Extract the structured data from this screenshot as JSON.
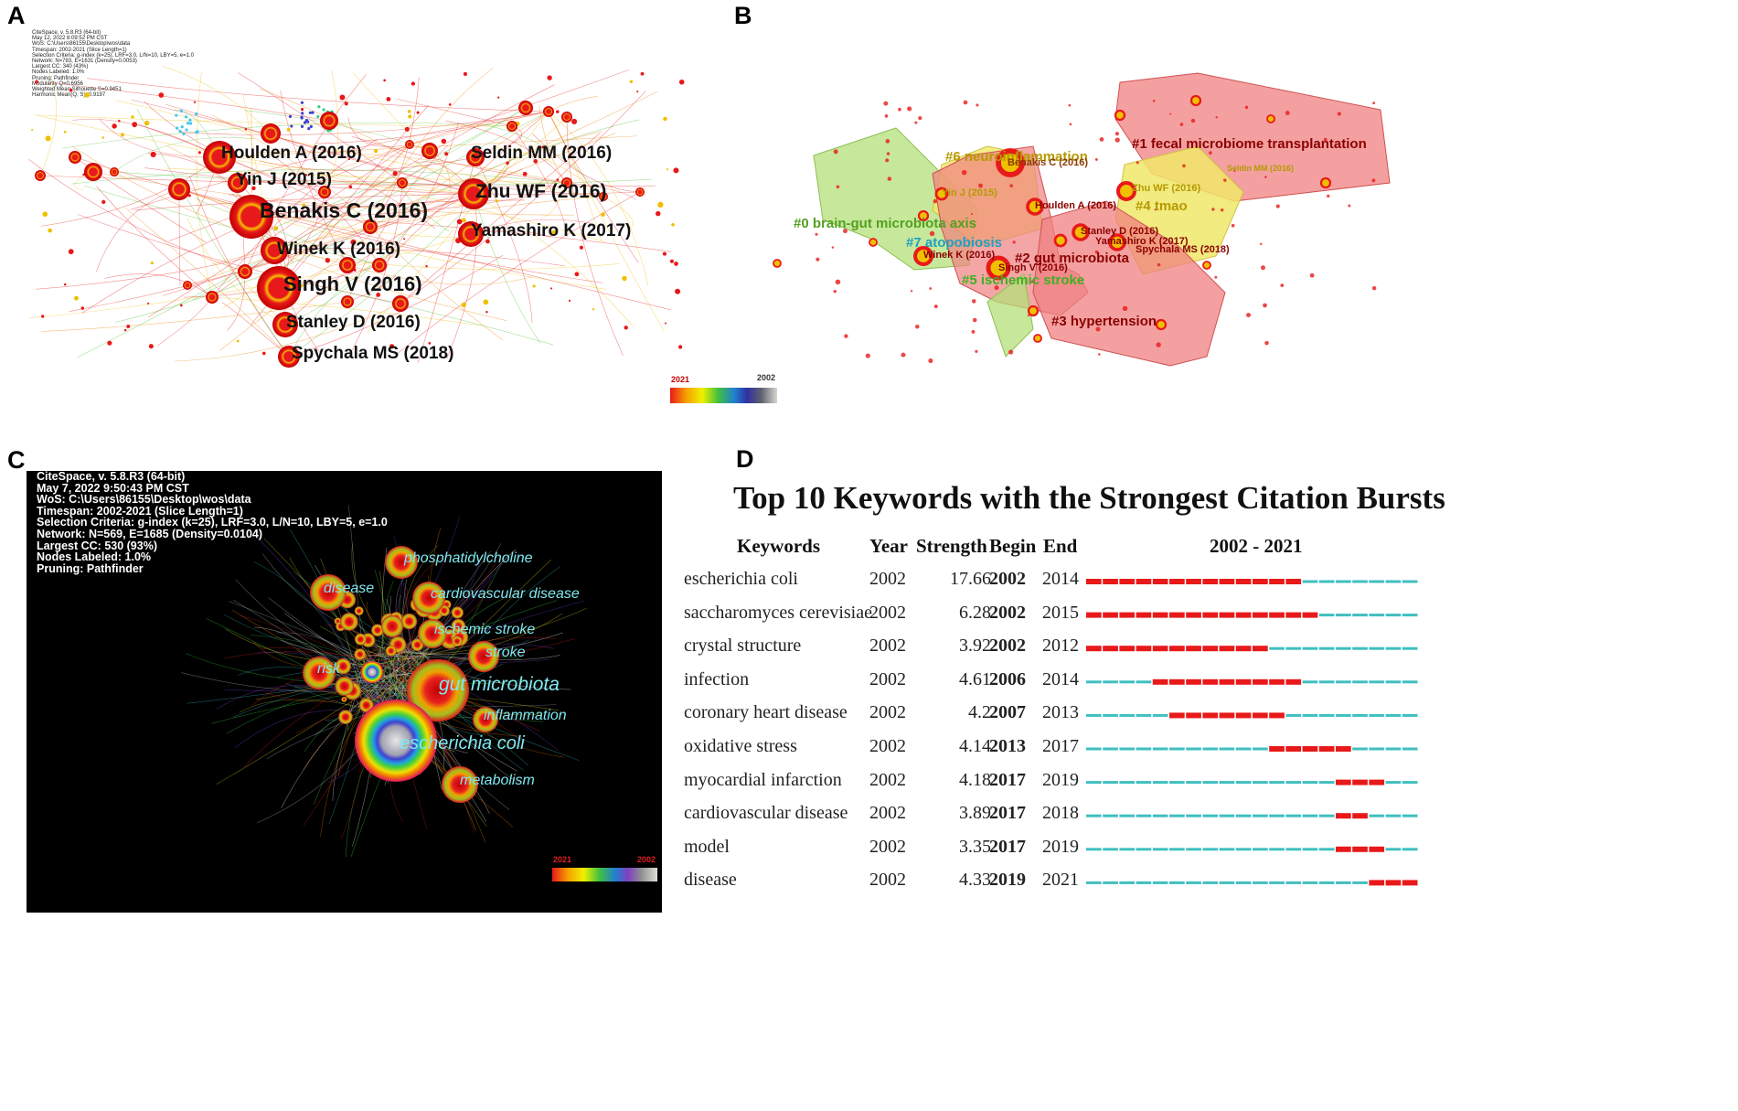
{
  "panels": {
    "a": {
      "label": "A",
      "meta": [
        "CiteSpace, v. 5.8.R3 (64-bit)",
        "May 12, 2022 8:09:52 PM CST",
        "WoS: C:\\Users\\86155\\Desktop\\wos\\data",
        "Timespan: 2002-2021 (Slice Length=1)",
        "Selection Criteria: g-index (k=25), LRF=3.0, L/N=10, LBY=5, e=1.0",
        "Network: N=783, E=1631 (Density=0.0053)",
        "Largest CC: 340 (43%)",
        "Nodes Labeled: 1.0%",
        "Pruning: Pathfinder",
        "Modularity Q=0.6956",
        "Weighted Mean Silhouette S=0.9451",
        "Harmonic Mean(Q, S)=0.9197"
      ],
      "node_labels": [
        "Houlden A (2016)",
        "Seldin MM (2016)",
        "Yin J (2015)",
        "Zhu WF (2016)",
        "Benakis C (2016)",
        "Yamashiro K (2017)",
        "Winek K (2016)",
        "Singh V (2016)",
        "Stanley D (2016)",
        "Spychala MS (2018)"
      ],
      "scale": {
        "left": "2021",
        "right": "2002"
      }
    },
    "b": {
      "label": "B",
      "cluster_labels": [
        "#1 fecal microbiome transplantation",
        "#6 neuroinflammation",
        "#0 brain-gut microbiota axis",
        "#4 tmao",
        "#7 atopobiosis",
        "#2 gut microbiota",
        "#5 ischemic stroke",
        "#3 hypertension"
      ],
      "node_labels": [
        "Benakis C (2016)",
        "Seldin MM (2016)",
        "Yin J (2015)",
        "Zhu WF (2016)",
        "Houlden A (2016)",
        "Stanley D (2016)",
        "Yamashiro K (2017)",
        "Spychala MS (2018)",
        "Winek K (2016)",
        "Singh V (2016)"
      ]
    },
    "c": {
      "label": "C",
      "meta": [
        "CiteSpace, v. 5.8.R3 (64-bit)",
        "May 7, 2022 9:50:43 PM CST",
        "WoS: C:\\Users\\86155\\Desktop\\wos\\data",
        "Timespan: 2002-2021 (Slice Length=1)",
        "Selection Criteria: g-index (k=25), LRF=3.0, L/N=10, LBY=5, e=1.0",
        "Network: N=569, E=1685 (Density=0.0104)",
        "Largest CC: 530 (93%)",
        "Nodes Labeled: 1.0%",
        "Pruning: Pathfinder"
      ],
      "keywords": [
        "phosphatidylcholine",
        "disease",
        "cardiovascular disease",
        "ischemic stroke",
        "stroke",
        "risk",
        "gut microbiota",
        "inflammation",
        "escherichia coli",
        "metabolism"
      ],
      "scale": {
        "left": "2021",
        "right": "2002"
      }
    },
    "d": {
      "label": "D",
      "title": "Top 10 Keywords with the Strongest Citation Bursts",
      "headers": {
        "keywords": "Keywords",
        "year": "Year",
        "strength": "Strength",
        "begin": "Begin",
        "end": "End",
        "range": "2002 - 2021"
      }
    }
  },
  "colors": {
    "burst": "#e8191a",
    "base": "#3fbfbf",
    "cluster_red": "#f08080",
    "cluster_yellow": "#f0e868",
    "cluster_green": "#b4e07a"
  },
  "chart_data": {
    "type": "table",
    "title": "Top 10 Keywords with the Strongest Citation Bursts",
    "columns": [
      "Keywords",
      "Year",
      "Strength",
      "Begin",
      "End",
      "2002 - 2021"
    ],
    "timeline": [
      2002,
      2021
    ],
    "rows": [
      {
        "keyword": "escherichia coli",
        "year": "2002",
        "strength": "17.66",
        "begin": "2002",
        "end": "2014"
      },
      {
        "keyword": "saccharomyces cerevisiae",
        "year": "2002",
        "strength": "6.28",
        "begin": "2002",
        "end": "2015"
      },
      {
        "keyword": "crystal structure",
        "year": "2002",
        "strength": "3.92",
        "begin": "2002",
        "end": "2012"
      },
      {
        "keyword": "infection",
        "year": "2002",
        "strength": "4.61",
        "begin": "2006",
        "end": "2014"
      },
      {
        "keyword": "coronary heart disease",
        "year": "2002",
        "strength": "4.2",
        "begin": "2007",
        "end": "2013"
      },
      {
        "keyword": "oxidative stress",
        "year": "2002",
        "strength": "4.14",
        "begin": "2013",
        "end": "2017"
      },
      {
        "keyword": "myocardial infarction",
        "year": "2002",
        "strength": "4.18",
        "begin": "2017",
        "end": "2019"
      },
      {
        "keyword": "cardiovascular disease",
        "year": "2002",
        "strength": "3.89",
        "begin": "2017",
        "end": "2018"
      },
      {
        "keyword": "model",
        "year": "2002",
        "strength": "3.35",
        "begin": "2017",
        "end": "2019"
      },
      {
        "keyword": "disease",
        "year": "2002",
        "strength": "4.33",
        "begin": "2019",
        "end": "2021"
      }
    ]
  }
}
